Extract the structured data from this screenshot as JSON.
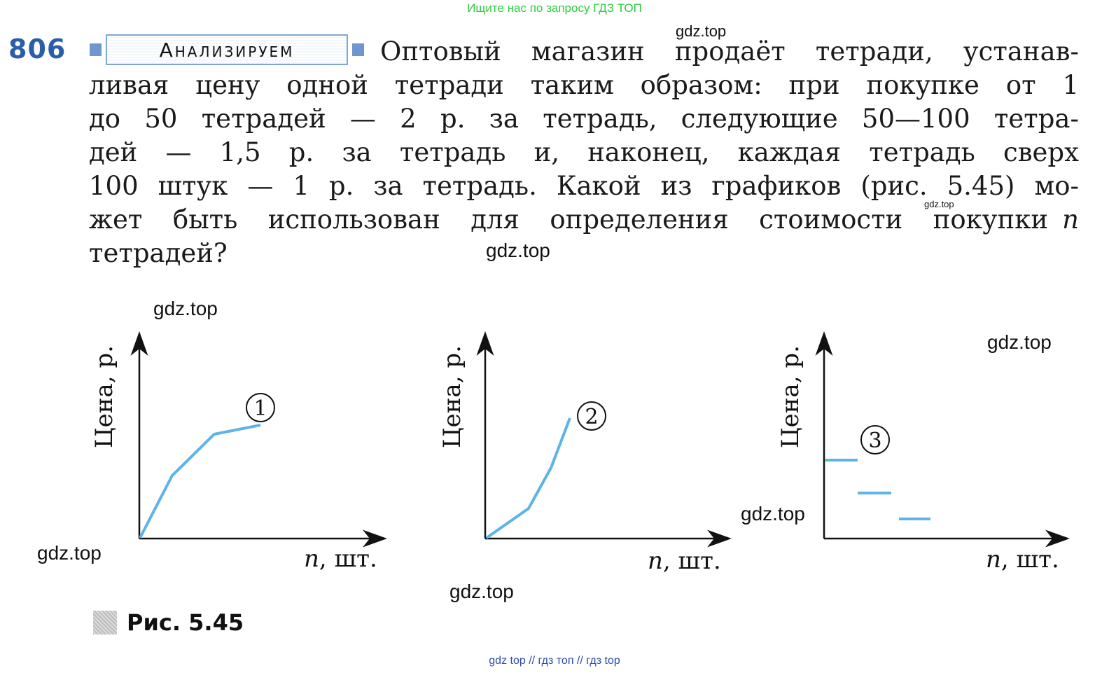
{
  "top_link": "Ищите нас по запросу ГДЗ ТОП",
  "task": {
    "number": "806",
    "badge": "Анализируем",
    "lines": [
      "Оптовый магазин продаёт тетради, устанав-",
      "ливая цену одной тетради таким образом: при покупке от 1",
      "до 50 тетрадей — 2 р. за тетрадь, следующие 50—100 тетра-",
      "дей — 1,5 р. за тетрадь и, наконец, каждая тетрадь сверх",
      "100 штук — 1 р. за тетрадь. Какой из графиков (рис. 5.45) мо-",
      "жет быть использован для определения стоимости покупки",
      "тетрадей?"
    ],
    "line6_var": "n"
  },
  "watermarks": [
    "gdz.top",
    "gdz.top",
    "gdz.top",
    "gdz.top",
    "gdz.top",
    "gdz.top",
    "gdz.top",
    "gdz.top",
    "gdz.top"
  ],
  "graphs": [
    {
      "label": "1",
      "ylabel": "Цена, р.",
      "xlabel_var": "n",
      "xlabel_unit": ", шт."
    },
    {
      "label": "2",
      "ylabel": "Цена, р.",
      "xlabel_var": "n",
      "xlabel_unit": ", шт."
    },
    {
      "label": "3",
      "ylabel": "Цена, р.",
      "xlabel_var": "n",
      "xlabel_unit": ", шт."
    }
  ],
  "figure_caption": "Рис. 5.45",
  "bottom_link": "gdz top  //  гдз топ  //  гдз top",
  "colors": {
    "curve": "#5eb3e8",
    "number": "#2a5ea8",
    "top_link": "#2ecc40",
    "bottom_link": "#2c4bb0"
  }
}
